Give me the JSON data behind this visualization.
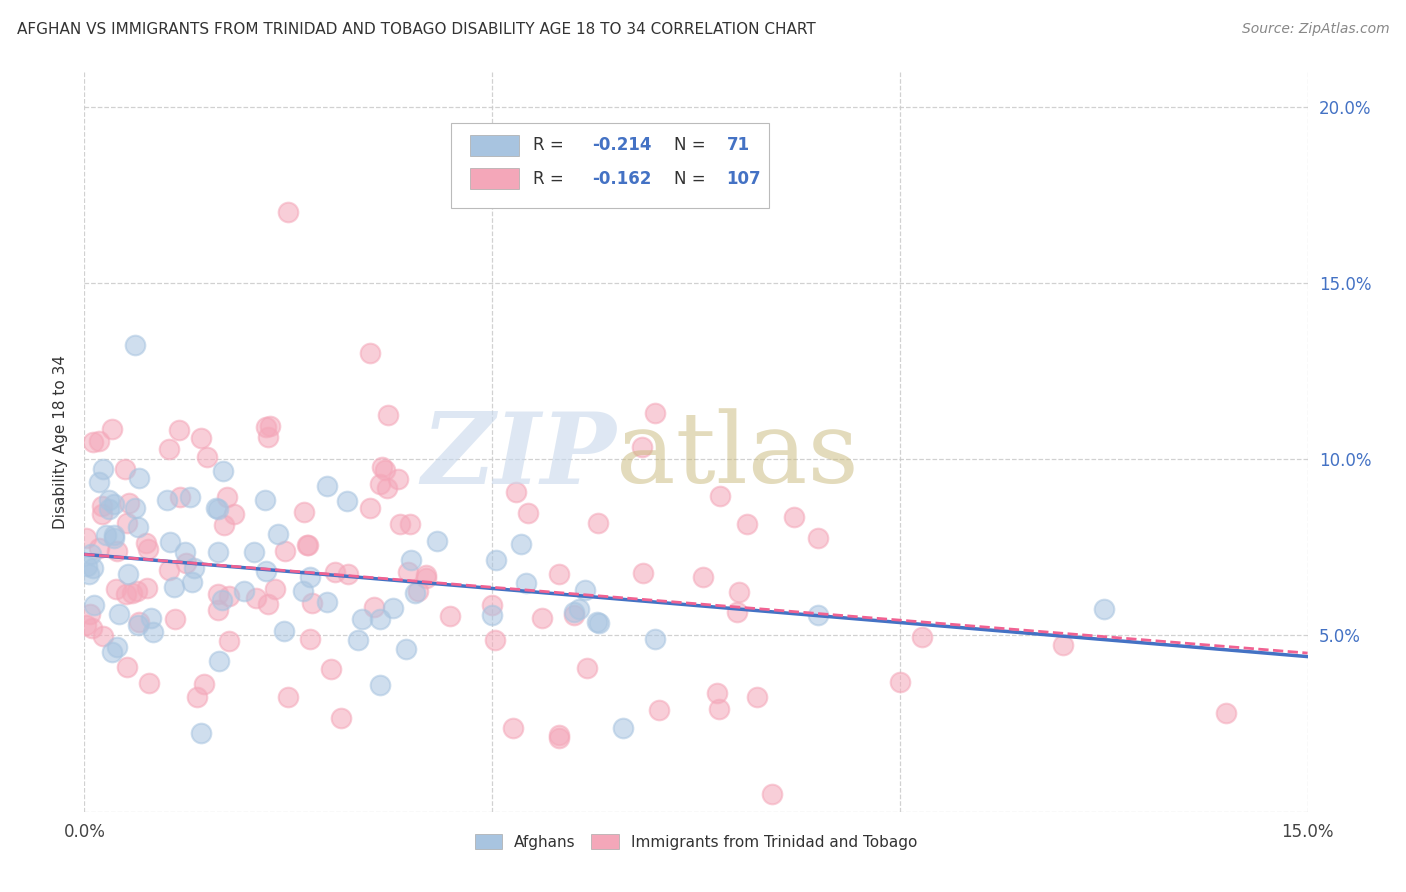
{
  "title": "AFGHAN VS IMMIGRANTS FROM TRINIDAD AND TOBAGO DISABILITY AGE 18 TO 34 CORRELATION CHART",
  "source": "Source: ZipAtlas.com",
  "ylabel": "Disability Age 18 to 34",
  "x_min": 0.0,
  "x_max": 0.15,
  "y_min": 0.0,
  "y_max": 0.21,
  "color_afghan": "#a8c4e0",
  "color_tt": "#f4a7b9",
  "trendline_afghan_color": "#4472c4",
  "trendline_tt_color": "#f06292",
  "n_afghan": 71,
  "n_tt": 107,
  "R_afghan": -0.214,
  "R_tt": -0.162,
  "seed_afghan": 42,
  "seed_tt": 99
}
